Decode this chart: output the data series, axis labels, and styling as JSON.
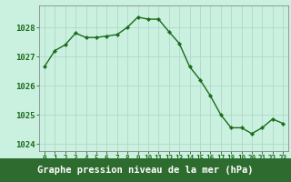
{
  "x": [
    0,
    1,
    2,
    3,
    4,
    5,
    6,
    7,
    8,
    9,
    10,
    11,
    12,
    13,
    14,
    15,
    16,
    17,
    18,
    19,
    20,
    21,
    22,
    23
  ],
  "y": [
    1026.65,
    1027.2,
    1027.4,
    1027.8,
    1027.65,
    1027.65,
    1027.7,
    1027.75,
    1028.0,
    1028.35,
    1028.28,
    1028.28,
    1027.85,
    1027.45,
    1026.65,
    1026.2,
    1025.65,
    1025.0,
    1024.55,
    1024.55,
    1024.35,
    1024.55,
    1024.85,
    1024.7
  ],
  "ylim": [
    1023.75,
    1028.75
  ],
  "yticks": [
    1024,
    1025,
    1026,
    1027,
    1028
  ],
  "xticks": [
    0,
    1,
    2,
    3,
    4,
    5,
    6,
    7,
    8,
    9,
    10,
    11,
    12,
    13,
    14,
    15,
    16,
    17,
    18,
    19,
    20,
    21,
    22,
    23
  ],
  "line_color": "#1a6b1a",
  "marker_color": "#1a6b1a",
  "bg_color": "#caf0e0",
  "grid_color_v": "#b0d8c8",
  "grid_color_h": "#b0d8c8",
  "border_color": "#888888",
  "xlabel": "Graphe pression niveau de la mer (hPa)",
  "xlabel_bg_color": "#2e6b2e",
  "xlabel_text_color": "#ffffff",
  "tick_color": "#1a6b1a",
  "ytick_fontsize": 6.5,
  "xtick_fontsize": 5.5,
  "xlabel_fontsize": 7.5,
  "xlim": [
    -0.5,
    23.5
  ]
}
